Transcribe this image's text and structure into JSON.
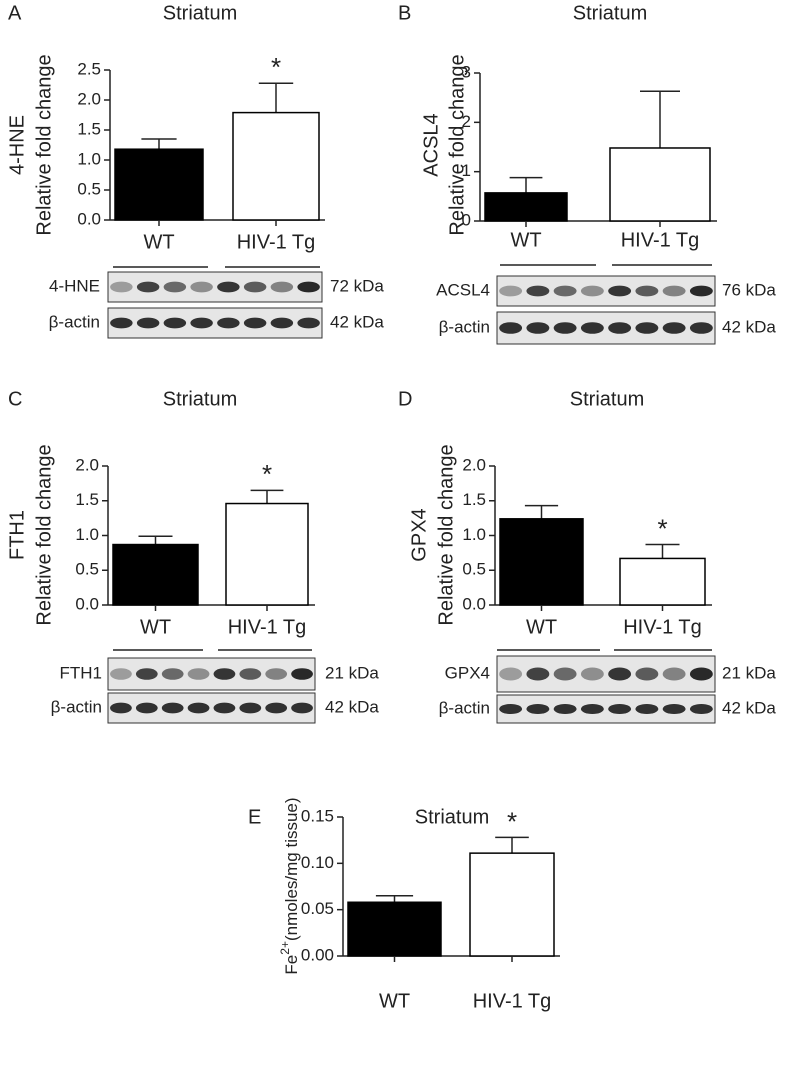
{
  "chart_data": [
    {
      "type": "bar",
      "panel": "A",
      "title": "Striatum",
      "ylabel": [
        "4-HNE",
        "Relative fold change"
      ],
      "categories": [
        "WT",
        "HIV-1 Tg"
      ],
      "values": [
        1.18,
        1.79
      ],
      "errors": [
        0.17,
        0.49
      ],
      "colors": [
        "#000000",
        "#ffffff"
      ],
      "annotations": [
        null,
        "*"
      ],
      "ylim": [
        0,
        2.5
      ],
      "yticks": [
        {
          "value": 0,
          "label": "0.0"
        },
        {
          "value": 0.5,
          "label": "0.5"
        },
        {
          "value": 1,
          "label": "1.0"
        },
        {
          "value": 1.5,
          "label": "1.5"
        },
        {
          "value": 2,
          "label": "2.0"
        },
        {
          "value": 2.5,
          "label": "2.5"
        }
      ],
      "blots": [
        {
          "label": "4-HNE",
          "size": "72 kDa"
        },
        {
          "label": "β-actin",
          "size": "42 kDa"
        }
      ]
    },
    {
      "type": "bar",
      "panel": "B",
      "title": "Striatum",
      "ylabel": [
        "ACSL4",
        "Relative fold change"
      ],
      "categories": [
        "WT",
        "HIV-1 Tg"
      ],
      "values": [
        0.57,
        1.48
      ],
      "errors": [
        0.31,
        1.15
      ],
      "colors": [
        "#000000",
        "#ffffff"
      ],
      "annotations": [
        null,
        null
      ],
      "ylim": [
        0,
        3
      ],
      "yticks": [
        0,
        1,
        2,
        3
      ],
      "blots": [
        {
          "label": "ACSL4",
          "size": "76 kDa"
        },
        {
          "label": "β-actin",
          "size": "42 kDa"
        }
      ]
    },
    {
      "type": "bar",
      "panel": "C",
      "title": "Striatum",
      "ylabel": [
        "FTH1",
        "Relative fold change"
      ],
      "categories": [
        "WT",
        "HIV-1 Tg"
      ],
      "values": [
        0.87,
        1.46
      ],
      "errors": [
        0.12,
        0.19
      ],
      "colors": [
        "#000000",
        "#ffffff"
      ],
      "annotations": [
        null,
        "*"
      ],
      "ylim": [
        0,
        2
      ],
      "yticks": [
        {
          "value": 0,
          "label": "0.0"
        },
        {
          "value": 0.5,
          "label": "0.5"
        },
        {
          "value": 1,
          "label": "1.0"
        },
        {
          "value": 1.5,
          "label": "1.5"
        },
        {
          "value": 2,
          "label": "2.0"
        }
      ],
      "blots": [
        {
          "label": "FTH1",
          "size": "21 kDa"
        },
        {
          "label": "β-actin",
          "size": "42 kDa"
        }
      ]
    },
    {
      "type": "bar",
      "panel": "D",
      "title": "Striatum",
      "ylabel": [
        "GPX4",
        "Relative fold change"
      ],
      "categories": [
        "WT",
        "HIV-1 Tg"
      ],
      "values": [
        1.24,
        0.67
      ],
      "errors": [
        0.19,
        0.2
      ],
      "colors": [
        "#000000",
        "#ffffff"
      ],
      "annotations": [
        null,
        "*"
      ],
      "ylim": [
        0,
        2
      ],
      "yticks": [
        {
          "value": 0,
          "label": "0.0"
        },
        {
          "value": 0.5,
          "label": "0.5"
        },
        {
          "value": 1,
          "label": "1.0"
        },
        {
          "value": 1.5,
          "label": "1.5"
        },
        {
          "value": 2,
          "label": "2.0"
        }
      ],
      "blots": [
        {
          "label": "GPX4",
          "size": "21 kDa"
        },
        {
          "label": "β-actin",
          "size": "42 kDa"
        }
      ]
    },
    {
      "type": "bar",
      "panel": "E",
      "title": "Striatum",
      "ylabel": {
        "base": "Fe",
        "sup": "2+",
        "rest": "(nmoles/mg tissue)"
      },
      "categories": [
        "WT",
        "HIV-1 Tg"
      ],
      "values": [
        0.058,
        0.111
      ],
      "errors": [
        0.007,
        0.017
      ],
      "colors": [
        "#000000",
        "#ffffff"
      ],
      "annotations": [
        null,
        "*"
      ],
      "ylim": [
        0,
        0.15
      ],
      "yticks": [
        {
          "value": 0,
          "label": "0.00"
        },
        {
          "value": 0.05,
          "label": "0.05"
        },
        {
          "value": 0.1,
          "label": "0.10"
        },
        {
          "value": 0.15,
          "label": "0.15"
        }
      ]
    }
  ]
}
